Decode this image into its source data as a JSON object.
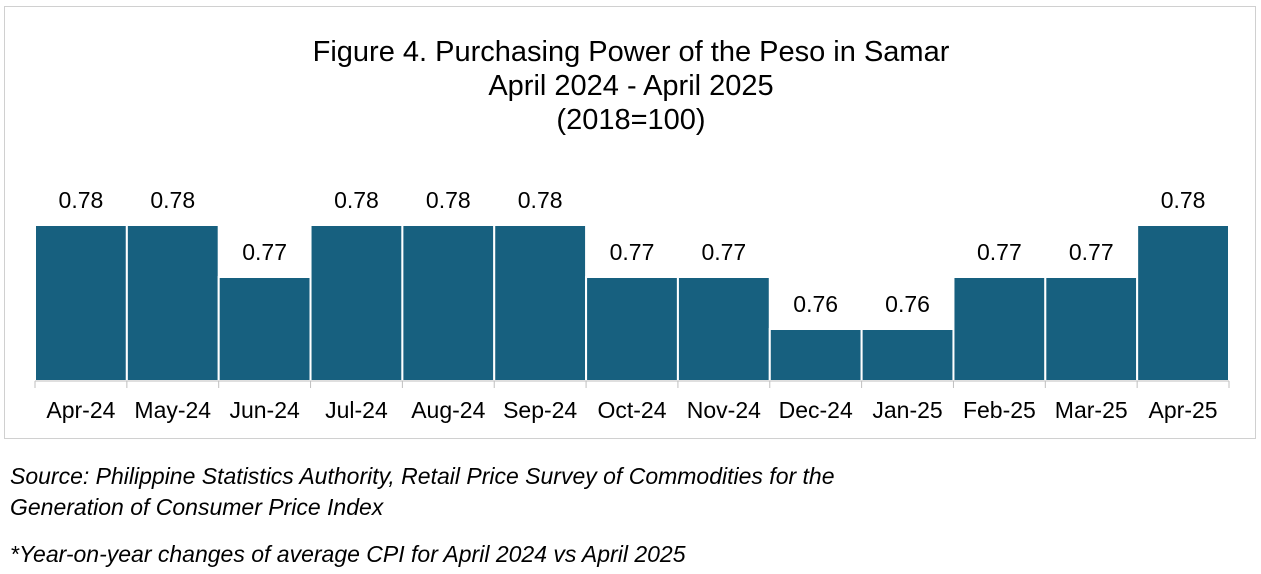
{
  "chart_data": {
    "type": "bar",
    "title_lines": [
      "Figure 4. Purchasing Power of the Peso in Samar",
      "April 2024 - April 2025",
      "(2018=100)"
    ],
    "categories": [
      "Apr-24",
      "May-24",
      "Jun-24",
      "Jul-24",
      "Aug-24",
      "Sep-24",
      "Oct-24",
      "Nov-24",
      "Dec-24",
      "Jan-25",
      "Feb-25",
      "Mar-25",
      "Apr-25"
    ],
    "values": [
      0.78,
      0.78,
      0.77,
      0.78,
      0.78,
      0.78,
      0.77,
      0.77,
      0.76,
      0.76,
      0.77,
      0.77,
      0.78
    ],
    "data_labels": [
      "0.78",
      "0.78",
      "0.77",
      "0.78",
      "0.78",
      "0.78",
      "0.77",
      "0.77",
      "0.76",
      "0.76",
      "0.77",
      "0.77",
      "0.78"
    ],
    "ylim": [
      0.75,
      0.78
    ],
    "bar_color": "#17607f",
    "grid": false,
    "legend": "none"
  },
  "source_lines": [
    "Source: Philippine Statistics Authority, Retail Price Survey of Commodities for the",
    "Generation of Consumer Price Index"
  ],
  "footnote": "*Year-on-year changes of average CPI for April 2024 vs April 2025"
}
